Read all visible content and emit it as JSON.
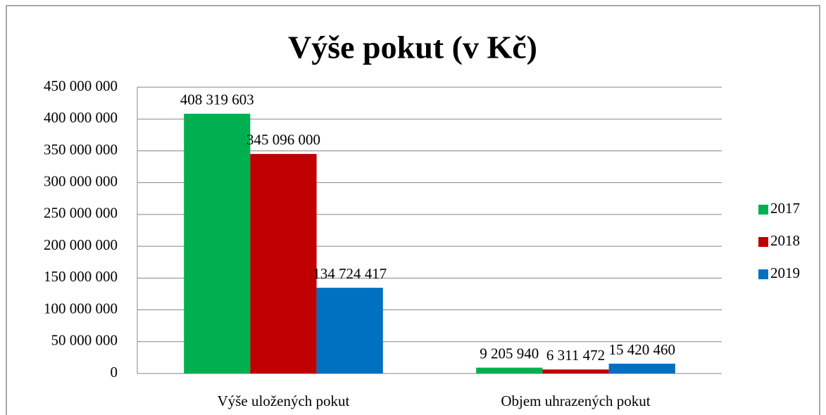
{
  "chart_data": {
    "type": "bar",
    "title": "Výše pokut (v Kč)",
    "categories": [
      "Výše uložených pokut",
      "Objem uhrazených pokut"
    ],
    "series": [
      {
        "name": "2017",
        "color": "#00b050",
        "values": [
          408319603,
          9205940
        ],
        "value_labels": [
          "408 319 603",
          "9 205 940"
        ]
      },
      {
        "name": "2018",
        "color": "#c00000",
        "values": [
          345096000,
          6311472
        ],
        "value_labels": [
          "345 096 000",
          "6 311 472"
        ]
      },
      {
        "name": "2019",
        "color": "#0070c0",
        "values": [
          134724417,
          15420460
        ],
        "value_labels": [
          "134 724 417",
          "15 420 460"
        ]
      }
    ],
    "ylim": [
      0,
      450000000
    ],
    "yticks": [
      0,
      {
        "value": 50000000,
        "label": "50 000 000"
      },
      {
        "value": 100000000,
        "label": "100 000 000"
      },
      {
        "value": 150000000,
        "label": "150 000 000"
      },
      {
        "value": 200000000,
        "label": "200 000 000"
      },
      {
        "value": 250000000,
        "label": "250 000 000"
      },
      {
        "value": 300000000,
        "label": "300 000 000"
      },
      {
        "value": 350000000,
        "label": "350 000 000"
      },
      {
        "value": 400000000,
        "label": "400 000 000"
      },
      {
        "value": 450000000,
        "label": "450 000 000"
      }
    ],
    "grid": true,
    "legend": "right"
  }
}
